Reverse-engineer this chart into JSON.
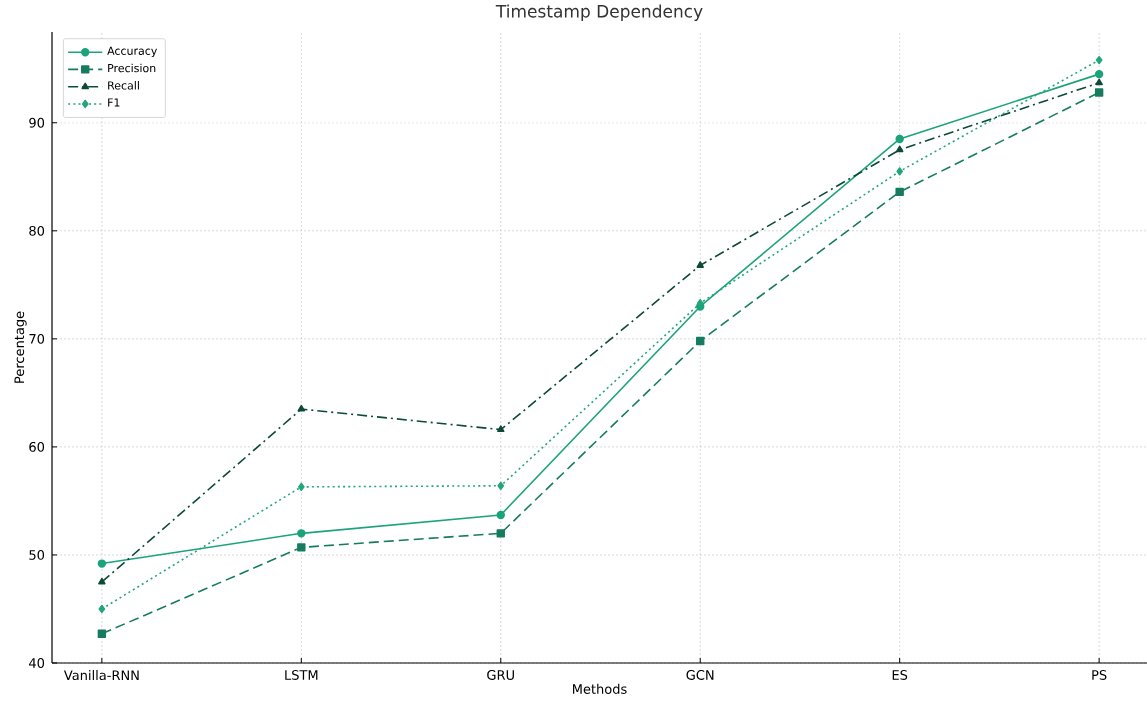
{
  "chart_data": {
    "type": "line",
    "title": "Timestamp Dependency",
    "xlabel": "Methods",
    "ylabel": "Percentage",
    "categories": [
      "Vanilla-RNN",
      "LSTM",
      "GRU",
      "GCN",
      "ES",
      "PS"
    ],
    "series": [
      {
        "name": "Accuracy",
        "color": "#1ba37b",
        "marker": "circle",
        "line_style": "solid",
        "values": [
          49.2,
          52.0,
          53.7,
          73.0,
          88.5,
          94.5
        ]
      },
      {
        "name": "Precision",
        "color": "#167c60",
        "marker": "square",
        "line_style": "dashed",
        "values": [
          42.7,
          50.7,
          52.0,
          69.8,
          83.6,
          92.8
        ]
      },
      {
        "name": "Recall",
        "color": "#0d4a37",
        "marker": "triangle",
        "line_style": "dashdot",
        "values": [
          47.5,
          63.5,
          61.6,
          76.8,
          87.5,
          93.7
        ]
      },
      {
        "name": "F1",
        "color": "#22a67c",
        "marker": "diamond",
        "line_style": "dotted",
        "values": [
          45.0,
          56.3,
          56.4,
          73.3,
          85.5,
          95.8
        ]
      }
    ],
    "ylim": [
      40,
      98.4
    ],
    "yticks": [
      40,
      50,
      60,
      70,
      80,
      90
    ],
    "grid": true,
    "legend": "top left"
  }
}
